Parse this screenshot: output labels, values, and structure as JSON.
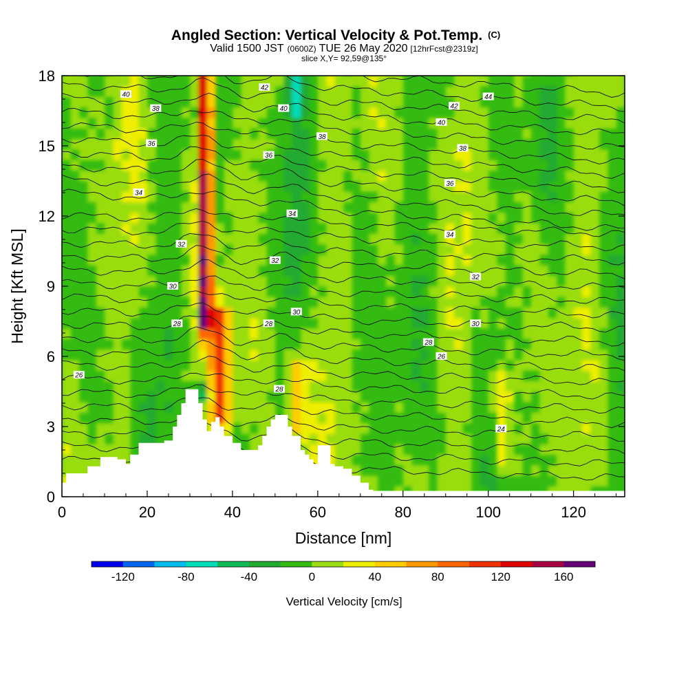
{
  "title": {
    "main": "Angled Section: Vertical Velocity & Pot.Temp.",
    "main_suffix": "(C)",
    "valid_prefix": "Valid 1500 JST",
    "valid_zulu": "(0600Z)",
    "valid_date": "TUE 26 May 2020",
    "valid_fcst": "[12hrFcst@2319z]",
    "slice": "slice X,Y= 92,59@135°"
  },
  "chart_data": {
    "type": "heatmap",
    "xlabel": "Distance [nm]",
    "ylabel": "Height [Kft MSL]",
    "xlim": [
      0,
      132
    ],
    "ylim": [
      0,
      18
    ],
    "xticks": [
      "0",
      "20",
      "40",
      "60",
      "80",
      "100",
      "120"
    ],
    "xtick_values": [
      0,
      20,
      40,
      60,
      80,
      100,
      120
    ],
    "yticks": [
      "0",
      "3",
      "6",
      "9",
      "12",
      "15",
      "18"
    ],
    "ytick_values": [
      0,
      3,
      6,
      9,
      12,
      15,
      18
    ],
    "colorbar": {
      "title": "Vertical Velocity [cm/s]",
      "labels": [
        "-120",
        "-80",
        "-40",
        "0",
        "40",
        "80",
        "120",
        "160"
      ],
      "label_values": [
        -120,
        -80,
        -40,
        0,
        40,
        80,
        120,
        160
      ],
      "levels": [
        -140,
        -120,
        -100,
        -80,
        -60,
        -40,
        -20,
        0,
        20,
        40,
        60,
        80,
        100,
        120,
        140,
        160,
        180
      ],
      "colors": [
        "#0000ee",
        "#0066ee",
        "#00bbee",
        "#00ddbb",
        "#11bb55",
        "#22aa33",
        "#33bb11",
        "#99dd11",
        "#eeee00",
        "#ffcc00",
        "#ff9900",
        "#ff6600",
        "#ee3300",
        "#dd0000",
        "#aa0044",
        "#660077"
      ]
    },
    "terrain_kft": [
      [
        0,
        0.6
      ],
      [
        1,
        1.0
      ],
      [
        6,
        1.3
      ],
      [
        9,
        1.7
      ],
      [
        13,
        1.6
      ],
      [
        15,
        1.4
      ],
      [
        16,
        1.8
      ],
      [
        18,
        2.3
      ],
      [
        20,
        2.3
      ],
      [
        24,
        2.4
      ],
      [
        26,
        3.0
      ],
      [
        27,
        3.5
      ],
      [
        28,
        4.0
      ],
      [
        29,
        4.6
      ],
      [
        31,
        4.6
      ],
      [
        32,
        4.0
      ],
      [
        33,
        3.3
      ],
      [
        34,
        2.8
      ],
      [
        35,
        3.2
      ],
      [
        36,
        3.4
      ],
      [
        37,
        3.0
      ],
      [
        38,
        2.6
      ],
      [
        40,
        2.3
      ],
      [
        42,
        2.0
      ],
      [
        45,
        2.0
      ],
      [
        46,
        2.2
      ],
      [
        47,
        2.6
      ],
      [
        48,
        3.0
      ],
      [
        49,
        3.3
      ],
      [
        50,
        3.5
      ],
      [
        52,
        3.5
      ],
      [
        53,
        3.0
      ],
      [
        54,
        2.6
      ],
      [
        56,
        2.0
      ],
      [
        57,
        1.8
      ],
      [
        58,
        1.6
      ],
      [
        59,
        1.4
      ],
      [
        60,
        2.2
      ],
      [
        62,
        2.2
      ],
      [
        63,
        1.4
      ],
      [
        64,
        1.3
      ],
      [
        66,
        1.2
      ],
      [
        68,
        0.9
      ],
      [
        70,
        0.6
      ],
      [
        72,
        0.3
      ],
      [
        73,
        0.25
      ],
      [
        132,
        0.25
      ]
    ],
    "updraft_cores": [
      {
        "x": 33.5,
        "top_kft": 18,
        "bottom_kft": 8,
        "peak_cms": 170
      },
      {
        "x": 37.0,
        "top_kft": 7,
        "bottom_kft": 4,
        "peak_cms": 100
      },
      {
        "x": 55.0,
        "top_kft": 5,
        "bottom_kft": 3.5,
        "peak_cms": 60
      },
      {
        "x": 103.0,
        "top_kft": 4.5,
        "bottom_kft": 2,
        "peak_cms": 40
      }
    ],
    "downdraft_cores": [
      {
        "x": 33.0,
        "top_kft": 5,
        "bottom_kft": 4,
        "peak_cms": -60
      },
      {
        "x": 55.0,
        "top_kft": 18,
        "bottom_kft": 16,
        "peak_cms": -50
      }
    ],
    "isentropes_C": [
      24,
      26,
      28,
      30,
      32,
      34,
      36,
      38,
      40,
      42,
      44
    ],
    "isentrope_labels": [
      {
        "text": "26",
        "x": 4,
        "y": 5.2
      },
      {
        "text": "28",
        "x": 27,
        "y": 7.4
      },
      {
        "text": "30",
        "x": 26,
        "y": 9.0
      },
      {
        "text": "32",
        "x": 28,
        "y": 10.8
      },
      {
        "text": "34",
        "x": 18,
        "y": 13.0
      },
      {
        "text": "36",
        "x": 21,
        "y": 15.1
      },
      {
        "text": "38",
        "x": 22,
        "y": 16.6
      },
      {
        "text": "40",
        "x": 15,
        "y": 17.2
      },
      {
        "text": "42",
        "x": 47.5,
        "y": 17.5
      },
      {
        "text": "40",
        "x": 52,
        "y": 16.6
      },
      {
        "text": "38",
        "x": 61,
        "y": 15.4
      },
      {
        "text": "36",
        "x": 48.5,
        "y": 14.6
      },
      {
        "text": "34",
        "x": 54,
        "y": 12.1
      },
      {
        "text": "32",
        "x": 50,
        "y": 10.1
      },
      {
        "text": "30",
        "x": 55,
        "y": 7.9
      },
      {
        "text": "28",
        "x": 48.5,
        "y": 7.4
      },
      {
        "text": "28",
        "x": 51,
        "y": 4.6
      },
      {
        "text": "42",
        "x": 92,
        "y": 16.7
      },
      {
        "text": "44",
        "x": 100,
        "y": 17.1
      },
      {
        "text": "40",
        "x": 89,
        "y": 16.0
      },
      {
        "text": "38",
        "x": 94,
        "y": 14.9
      },
      {
        "text": "36",
        "x": 91,
        "y": 13.4
      },
      {
        "text": "34",
        "x": 91,
        "y": 11.2
      },
      {
        "text": "32",
        "x": 97,
        "y": 9.4
      },
      {
        "text": "30",
        "x": 97,
        "y": 7.4
      },
      {
        "text": "28",
        "x": 86,
        "y": 6.6
      },
      {
        "text": "26",
        "x": 89,
        "y": 6.0
      },
      {
        "text": "24",
        "x": 103,
        "y": 2.9
      }
    ]
  }
}
